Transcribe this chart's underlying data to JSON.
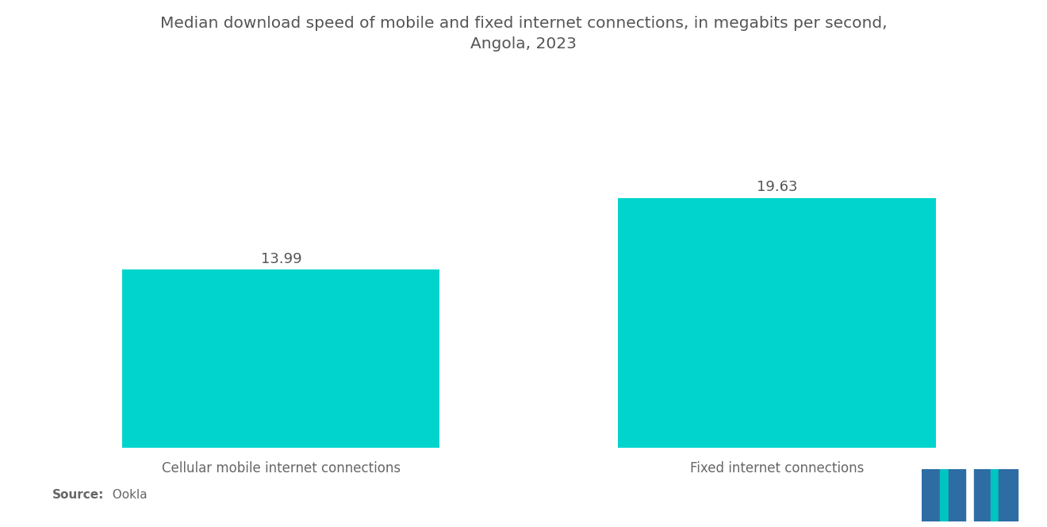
{
  "title_line1": "Median download speed of mobile and fixed internet connections, in megabits per second,",
  "title_line2": "Angola, 2023",
  "categories": [
    "Cellular mobile internet connections",
    "Fixed internet connections"
  ],
  "values": [
    13.99,
    19.63
  ],
  "bar_color": "#00D4CC",
  "background_color": "#ffffff",
  "title_color": "#555555",
  "label_color": "#666666",
  "value_label_color": "#555555",
  "source_bold": "Source:",
  "source_normal": "  Ookla",
  "ylim": [
    0,
    24
  ],
  "bar_positions": [
    0.22,
    0.72
  ],
  "bar_width": 0.32,
  "title_fontsize": 14.5,
  "label_fontsize": 12,
  "value_fontsize": 13,
  "source_fontsize": 11,
  "logo_blue": "#2E6DA4",
  "logo_teal": "#00C4C0"
}
